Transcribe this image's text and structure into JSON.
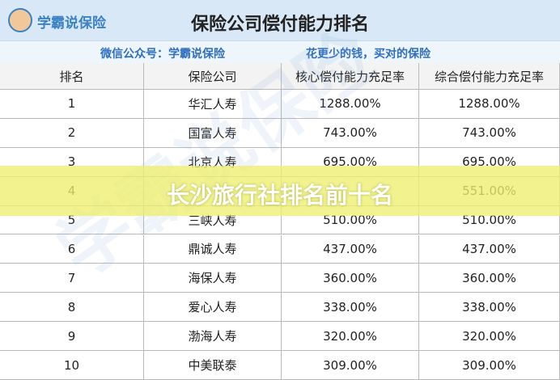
{
  "header": {
    "logo": "学霸说保险",
    "title": "保险公司偿付能力排名",
    "subtitle_left": "微信公众号：学霸说保险",
    "subtitle_right": "花更少的钱，买对的保险"
  },
  "table": {
    "columns": [
      "排名",
      "保险公司",
      "核心偿付能力充足率",
      "综合偿付能力充足率"
    ],
    "rows": [
      [
        "1",
        "华汇人寿",
        "1288.00%",
        "1288.00%"
      ],
      [
        "2",
        "国富人寿",
        "743.00%",
        "743.00%"
      ],
      [
        "3",
        "北京人寿",
        "695.00%",
        "695.00%"
      ],
      [
        "4",
        null,
        null,
        "551.00%"
      ],
      [
        "5",
        "三峡人寿",
        "510.00%",
        "510.00%"
      ],
      [
        "6",
        "鼎诚人寿",
        "437.00%",
        "437.00%"
      ],
      [
        "7",
        "海保人寿",
        "360.00%",
        "360.00%"
      ],
      [
        "8",
        "爱心人寿",
        "338.00%",
        "338.00%"
      ],
      [
        "9",
        "渤海人寿",
        "320.00%",
        "320.00%"
      ],
      [
        "10",
        "中美联泰",
        "309.00%",
        "309.00%"
      ]
    ]
  },
  "watermark": "学霸说保险",
  "banner": "长沙旅行社排名前十名"
}
